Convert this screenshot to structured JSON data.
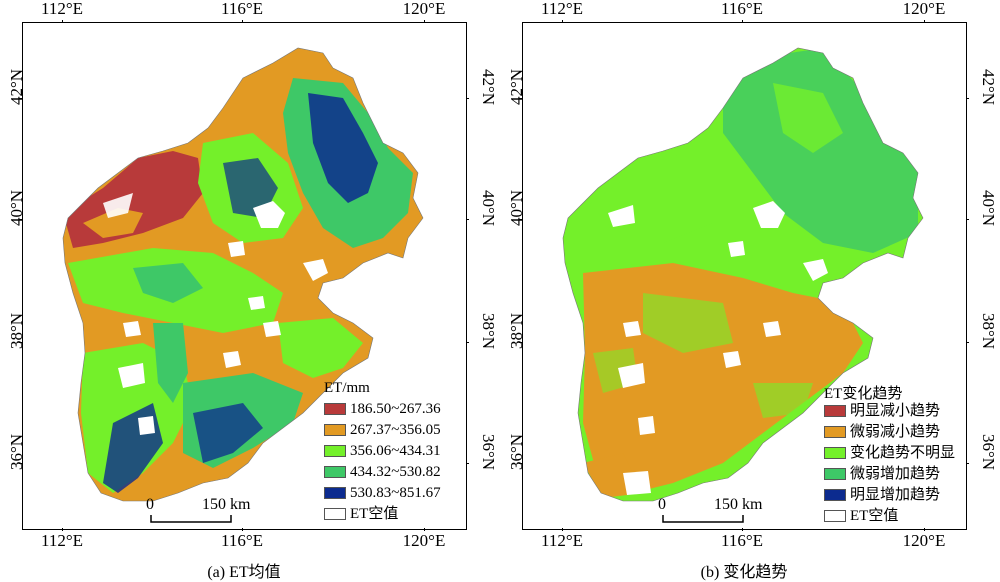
{
  "panels": [
    {
      "id": "a",
      "caption": "(a) ET均值",
      "longitude_labels": [
        "112°E",
        "116°E",
        "120°E"
      ],
      "latitude_labels": [
        "42°N",
        "40°N",
        "38°N",
        "36°N"
      ],
      "legend": {
        "title": "ET/mm",
        "items": [
          {
            "label": "186.50~267.36",
            "color": "#b83a3a"
          },
          {
            "label": "267.37~356.05",
            "color": "#e29a23"
          },
          {
            "label": "356.06~434.31",
            "color": "#74f02a"
          },
          {
            "label": "434.32~530.82",
            "color": "#3ec867"
          },
          {
            "label": "530.83~851.67",
            "color": "#0c2b8f"
          },
          {
            "label": "ET空值",
            "color": "#ffffff"
          }
        ]
      },
      "scalebar": {
        "start": "0",
        "end": "150 km"
      }
    },
    {
      "id": "b",
      "caption": "(b) 变化趋势",
      "longitude_labels": [
        "112°E",
        "116°E",
        "120°E"
      ],
      "latitude_labels": [
        "42°N",
        "40°N",
        "38°N",
        "36°N"
      ],
      "legend": {
        "title": "ET变化趋势",
        "items": [
          {
            "label": "明显减小趋势",
            "color": "#b83a3a"
          },
          {
            "label": "微弱减小趋势",
            "color": "#e29a23"
          },
          {
            "label": "变化趋势不明显",
            "color": "#74f02a"
          },
          {
            "label": "微弱增加趋势",
            "color": "#3ec867"
          },
          {
            "label": "明显增加趋势",
            "color": "#0c2b8f"
          },
          {
            "label": "ET空值",
            "color": "#ffffff"
          }
        ]
      },
      "scalebar": {
        "start": "0",
        "end": "150 km"
      }
    }
  ]
}
